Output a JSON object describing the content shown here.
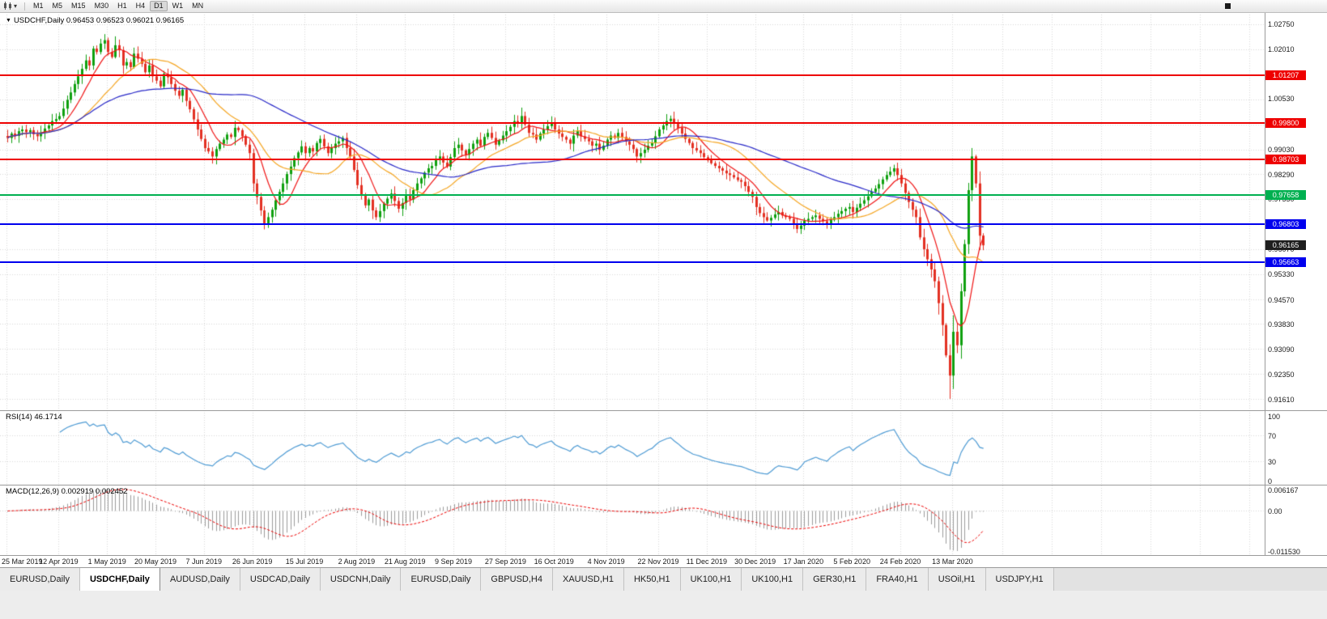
{
  "toolbar": {
    "timeframes": [
      "M1",
      "M5",
      "M15",
      "M30",
      "H1",
      "H4",
      "D1",
      "W1",
      "MN"
    ],
    "active_timeframe": "D1"
  },
  "icons": {
    "dropdown_caret": "▾",
    "symbol_caret": "▼"
  },
  "main_chart": {
    "symbol_ohlc_label": "USDCHF,Daily 0.96453 0.96523 0.96021 0.96165"
  },
  "rsi_panel": {
    "label": "RSI(14) 46.1714",
    "ticks": [
      "100",
      "70",
      "30",
      "0"
    ]
  },
  "macd_panel": {
    "label": "MACD(12,26,9) 0.002919 0.002452",
    "ticks": [
      "0.006167",
      "0.00",
      "-0.011530"
    ]
  },
  "price_axis_ticks": [
    "1.02750",
    "1.02010",
    "1.01270",
    "1.00530",
    "0.99770",
    "0.99030",
    "0.98290",
    "0.97550",
    "0.96810",
    "0.96070",
    "0.95330",
    "0.94570",
    "0.93830",
    "0.93090",
    "0.92350",
    "0.91610"
  ],
  "current_price_marker": {
    "label": "0.96165",
    "price": 0.96165,
    "bg": "#1E1E1E"
  },
  "tabs": [
    "EURUSD,Daily",
    "USDCHF,Daily",
    "AUDUSD,Daily",
    "USDCAD,Daily",
    "USDCNH,Daily",
    "EURUSD,Daily",
    "GBPUSD,H4",
    "XAUUSD,H1",
    "HK50,H1",
    "UK100,H1",
    "UK100,H1",
    "GER30,H1",
    "FRA40,H1",
    "USOil,H1",
    "USDJPY,H1"
  ],
  "active_tab_index": 1,
  "chart_data": {
    "type": "candlestick",
    "symbol": "USDCHF",
    "timeframe": "Daily",
    "last_candle": {
      "open": 0.96453,
      "high": 0.96523,
      "low": 0.96021,
      "close": 0.96165
    },
    "price_range": {
      "top": 1.0301,
      "bottom": 0.9132,
      "tick_step": 0.0074
    },
    "closes": [
      0.9935,
      0.9948,
      0.9941,
      0.9955,
      0.996,
      0.9952,
      0.9958,
      0.9946,
      0.994,
      0.9951,
      0.9963,
      0.9972,
      0.9985,
      0.9991,
      1.0,
      1.0022,
      1.0048,
      1.007,
      1.0095,
      1.0118,
      1.014,
      1.0165,
      1.015,
      1.02,
      1.019,
      1.0215,
      1.0225,
      1.019,
      1.0175,
      1.021,
      1.0195,
      1.015,
      1.016,
      1.0145,
      1.0185,
      1.017,
      1.0155,
      1.013,
      1.015,
      1.0118,
      1.0105,
      1.0088,
      1.0125,
      1.0115,
      1.0095,
      1.0075,
      1.006,
      1.0078,
      1.0045,
      1.002,
      0.999,
      0.996,
      0.9932,
      0.9905,
      0.9895,
      0.988,
      0.9902,
      0.9918,
      0.993,
      0.9945,
      0.9938,
      0.9965,
      0.9958,
      0.994,
      0.9915,
      0.989,
      0.98,
      0.976,
      0.972,
      0.968,
      0.97,
      0.9722,
      0.975,
      0.9775,
      0.98,
      0.9828,
      0.985,
      0.9875,
      0.9892,
      0.991,
      0.989,
      0.9905,
      0.9895,
      0.992,
      0.9932,
      0.991,
      0.989,
      0.9905,
      0.9918,
      0.9925,
      0.9935,
      0.9905,
      0.988,
      0.984,
      0.9795,
      0.9765,
      0.9735,
      0.9752,
      0.972,
      0.97,
      0.9718,
      0.974,
      0.9755,
      0.977,
      0.9748,
      0.9725,
      0.9742,
      0.9765,
      0.9752,
      0.978,
      0.98,
      0.9815,
      0.9832,
      0.9845,
      0.9852,
      0.987,
      0.988,
      0.9862,
      0.985,
      0.9878,
      0.9905,
      0.9915,
      0.9898,
      0.9885,
      0.9902,
      0.9918,
      0.993,
      0.9912,
      0.9938,
      0.995,
      0.9935,
      0.9915,
      0.9928,
      0.9942,
      0.9955,
      0.9968,
      0.9985,
      0.9978,
      1.0,
      0.9975,
      0.995,
      0.9945,
      0.993,
      0.9948,
      0.996,
      0.997,
      0.998,
      0.996,
      0.9948,
      0.9938,
      0.993,
      0.9918,
      0.9942,
      0.9955,
      0.994,
      0.9932,
      0.9925,
      0.9912,
      0.9918,
      0.99,
      0.9912,
      0.993,
      0.9942,
      0.9935,
      0.995,
      0.9938,
      0.9925,
      0.9915,
      0.9902,
      0.988,
      0.989,
      0.99,
      0.9912,
      0.992,
      0.994,
      0.996,
      0.9972,
      0.9985,
      0.9992,
      0.9978,
      0.9965,
      0.9948,
      0.9932,
      0.992,
      0.9905,
      0.9898,
      0.989,
      0.9878,
      0.987,
      0.986,
      0.9852,
      0.9845,
      0.9838,
      0.983,
      0.9825,
      0.9818,
      0.981,
      0.9805,
      0.9792,
      0.9775,
      0.976,
      0.973,
      0.9712,
      0.97,
      0.969,
      0.9698,
      0.9708,
      0.9715,
      0.9705,
      0.97,
      0.9695,
      0.968,
      0.9665,
      0.9675,
      0.969,
      0.9695,
      0.97,
      0.9705,
      0.9695,
      0.9688,
      0.968,
      0.9692,
      0.97,
      0.971,
      0.9718,
      0.9725,
      0.973,
      0.9715,
      0.9728,
      0.974,
      0.975,
      0.9762,
      0.9775,
      0.9785,
      0.9798,
      0.9812,
      0.9825,
      0.9835,
      0.9845,
      0.9825,
      0.98,
      0.9772,
      0.9745,
      0.9722,
      0.97,
      0.964,
      0.9605,
      0.9575,
      0.9545,
      0.951,
      0.9445,
      0.938,
      0.929,
      0.923,
      0.936,
      0.932,
      0.948,
      0.962,
      0.978,
      0.988,
      0.98,
      0.9645,
      0.96165
    ],
    "overrides": [
      {
        "index": 26,
        "high": 1.0243
      },
      {
        "index": 138,
        "high": 1.0025
      },
      {
        "index": 253,
        "low": 0.9161
      },
      {
        "index": 259,
        "high": 0.9905
      },
      {
        "index": 262,
        "open": 0.96453,
        "high": 0.96523,
        "low": 0.96021
      }
    ],
    "horizontal_lines": [
      {
        "label": "1.01207",
        "price": 1.01207,
        "color": "#EE0000",
        "role": "resistance"
      },
      {
        "label": "0.99800",
        "price": 0.998,
        "color": "#EE0000",
        "role": "resistance"
      },
      {
        "label": "0.98703",
        "price": 0.98703,
        "color": "#EE0000",
        "role": "resistance"
      },
      {
        "label": "0.97658",
        "price": 0.97658,
        "color": "#00B050",
        "role": "pivot"
      },
      {
        "label": "0.96803",
        "price": 0.96803,
        "color": "#0000EE",
        "role": "support"
      },
      {
        "label": "0.95663",
        "price": 0.95663,
        "color": "#0000EE",
        "role": "support"
      }
    ],
    "date_labels": [
      {
        "label": "25 Mar 2019",
        "i": 0
      },
      {
        "label": "12 Apr 2019",
        "i": 14
      },
      {
        "label": "1 May 2019",
        "i": 27
      },
      {
        "label": "20 May 2019",
        "i": 40
      },
      {
        "label": "7 Jun 2019",
        "i": 53
      },
      {
        "label": "26 Jun 2019",
        "i": 66
      },
      {
        "label": "15 Jul 2019",
        "i": 80
      },
      {
        "label": "2 Aug 2019",
        "i": 94
      },
      {
        "label": "21 Aug 2019",
        "i": 107
      },
      {
        "label": "9 Sep 2019",
        "i": 120
      },
      {
        "label": "27 Sep 2019",
        "i": 134
      },
      {
        "label": "16 Oct 2019",
        "i": 147
      },
      {
        "label": "4 Nov 2019",
        "i": 161
      },
      {
        "label": "22 Nov 2019",
        "i": 175
      },
      {
        "label": "11 Dec 2019",
        "i": 188
      },
      {
        "label": "30 Dec 2019",
        "i": 201
      },
      {
        "label": "17 Jan 2020",
        "i": 214
      },
      {
        "label": "5 Feb 2020",
        "i": 227
      },
      {
        "label": "24 Feb 2020",
        "i": 240
      },
      {
        "label": "13 Mar 2020",
        "i": 254
      }
    ],
    "moving_averages": [
      {
        "period": 8,
        "color": "#F01414"
      },
      {
        "period": 21,
        "color": "#F5A623"
      },
      {
        "period": 55,
        "color": "#2828C8"
      }
    ],
    "colors": {
      "up": "#0FA00F",
      "down": "#E33022"
    },
    "rsi": {
      "period": 14,
      "current": 46.1714,
      "color": "#4E9BD4",
      "levels": [
        70,
        30
      ]
    },
    "macd": {
      "fast": 12,
      "slow": 26,
      "signal": 9,
      "macd_value": 0.002919,
      "signal_value": 0.002452,
      "histogram_color": "#9B9B9B",
      "signal_color": "#EE0000",
      "range": {
        "max": 0.006167,
        "min": -0.01153
      }
    }
  }
}
